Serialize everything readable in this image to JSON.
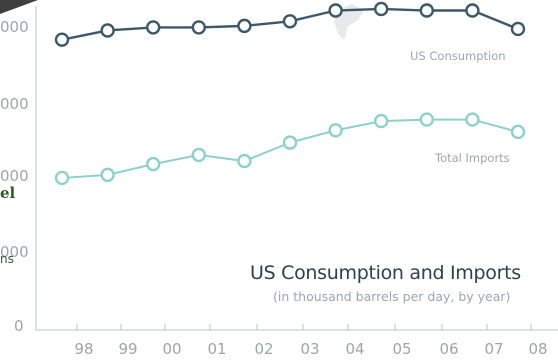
{
  "chart_data": {
    "type": "line",
    "title": "US Consumption and Imports",
    "subtitle": "(in thousand barrels per day, by year)",
    "categories": [
      "98",
      "99",
      "00",
      "01",
      "02",
      "03",
      "04",
      "05",
      "06",
      "07",
      "08"
    ],
    "x": [
      1997.6,
      1998.4,
      1999.4,
      2000.4,
      2001.4,
      2002.4,
      2003.4,
      2004.4,
      2005.4,
      2006.4,
      2007.4
    ],
    "series": [
      {
        "name": "US Consumption",
        "color": "#3d5868",
        "values": [
          18900,
          19500,
          19700,
          19700,
          19800,
          20100,
          20800,
          20900,
          20800,
          20800,
          19600
        ]
      },
      {
        "name": "Total Imports",
        "color": "#8ed1cb",
        "values": [
          9900,
          10100,
          10800,
          11400,
          11000,
          12200,
          13000,
          13600,
          13700,
          13700,
          12900
        ]
      }
    ],
    "y_tick_labels": [
      "000",
      "000",
      "000",
      "000",
      "0"
    ],
    "ylim": [
      0,
      22000
    ],
    "grid": false,
    "legend": "inline labels at line ends"
  },
  "side_fragments": {
    "bold_text": "el",
    "small_text": "ns"
  },
  "colors": {
    "axis": "#b9c3c8",
    "consumption_line": "#3d5868",
    "imports_line": "#8ed1cb",
    "title": "#2b4250",
    "muted_text": "#9aa6ad",
    "side_text": "#2f5a2a"
  }
}
